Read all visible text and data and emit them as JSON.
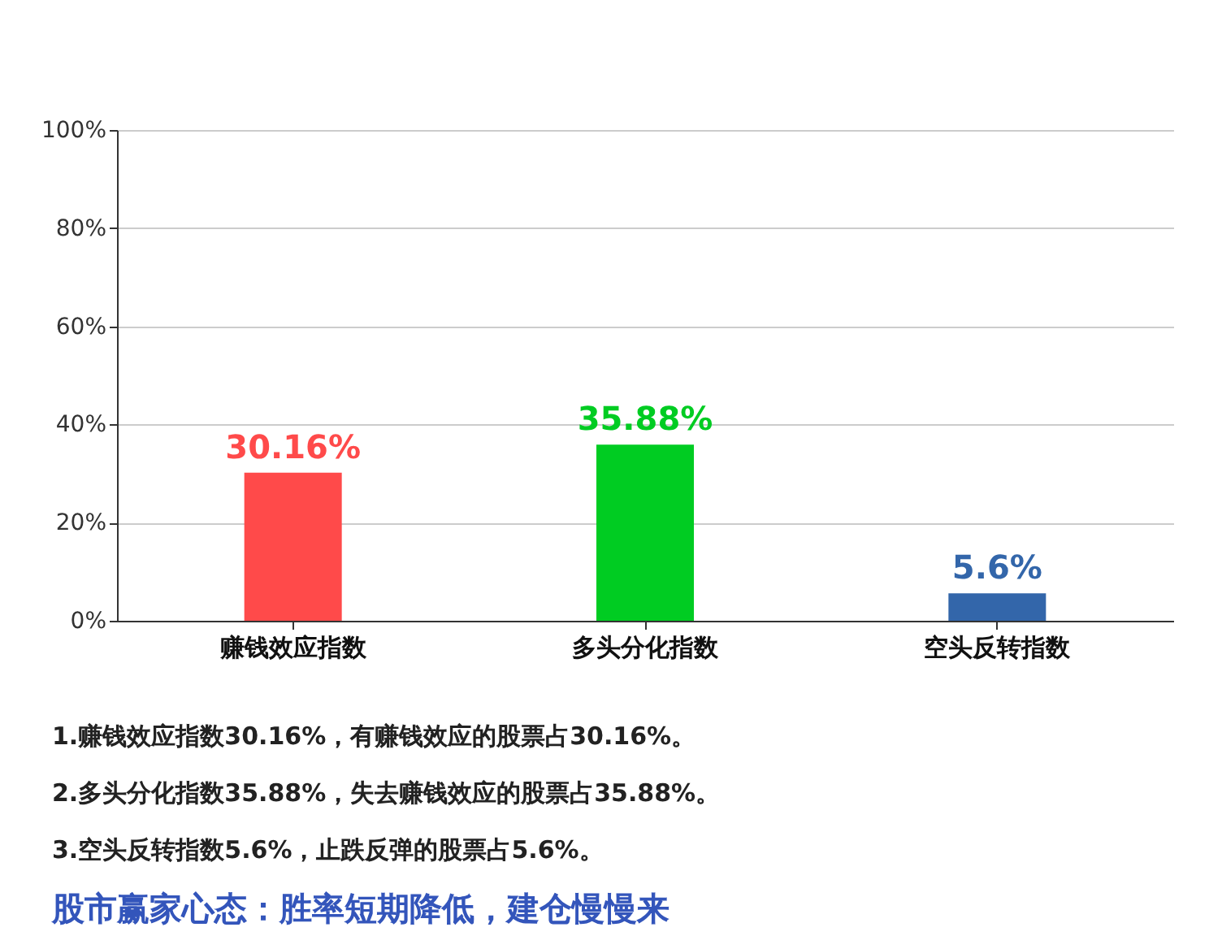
{
  "chart_data": {
    "type": "bar",
    "categories": [
      "赚钱效应指数",
      "多头分化指数",
      "空头反转指数"
    ],
    "values": [
      30.16,
      35.88,
      5.6
    ],
    "colors": [
      "#ff4a4a",
      "#00cc22",
      "#3366aa"
    ],
    "value_labels": [
      "30.16%",
      "35.88%",
      "5.6%"
    ],
    "ylim": [
      0,
      100
    ],
    "yticks": [
      {
        "value": 0,
        "label": "0%"
      },
      {
        "value": 20,
        "label": "20%"
      },
      {
        "value": 40,
        "label": "40%"
      },
      {
        "value": 60,
        "label": "60%"
      },
      {
        "value": 80,
        "label": "80%"
      },
      {
        "value": 100,
        "label": "100%"
      }
    ],
    "grid": "y",
    "annotations": [
      "1.赚钱效应指数30.16%，有赚钱效应的股票占30.16%。",
      "2.多头分化指数35.88%，失去赚钱效应的股票占35.88%。",
      "3.空头反转指数5.6%，止跌反弹的股票占5.6%。",
      "股市赢家心态：胜率短期降低，建仓慢慢来"
    ]
  }
}
